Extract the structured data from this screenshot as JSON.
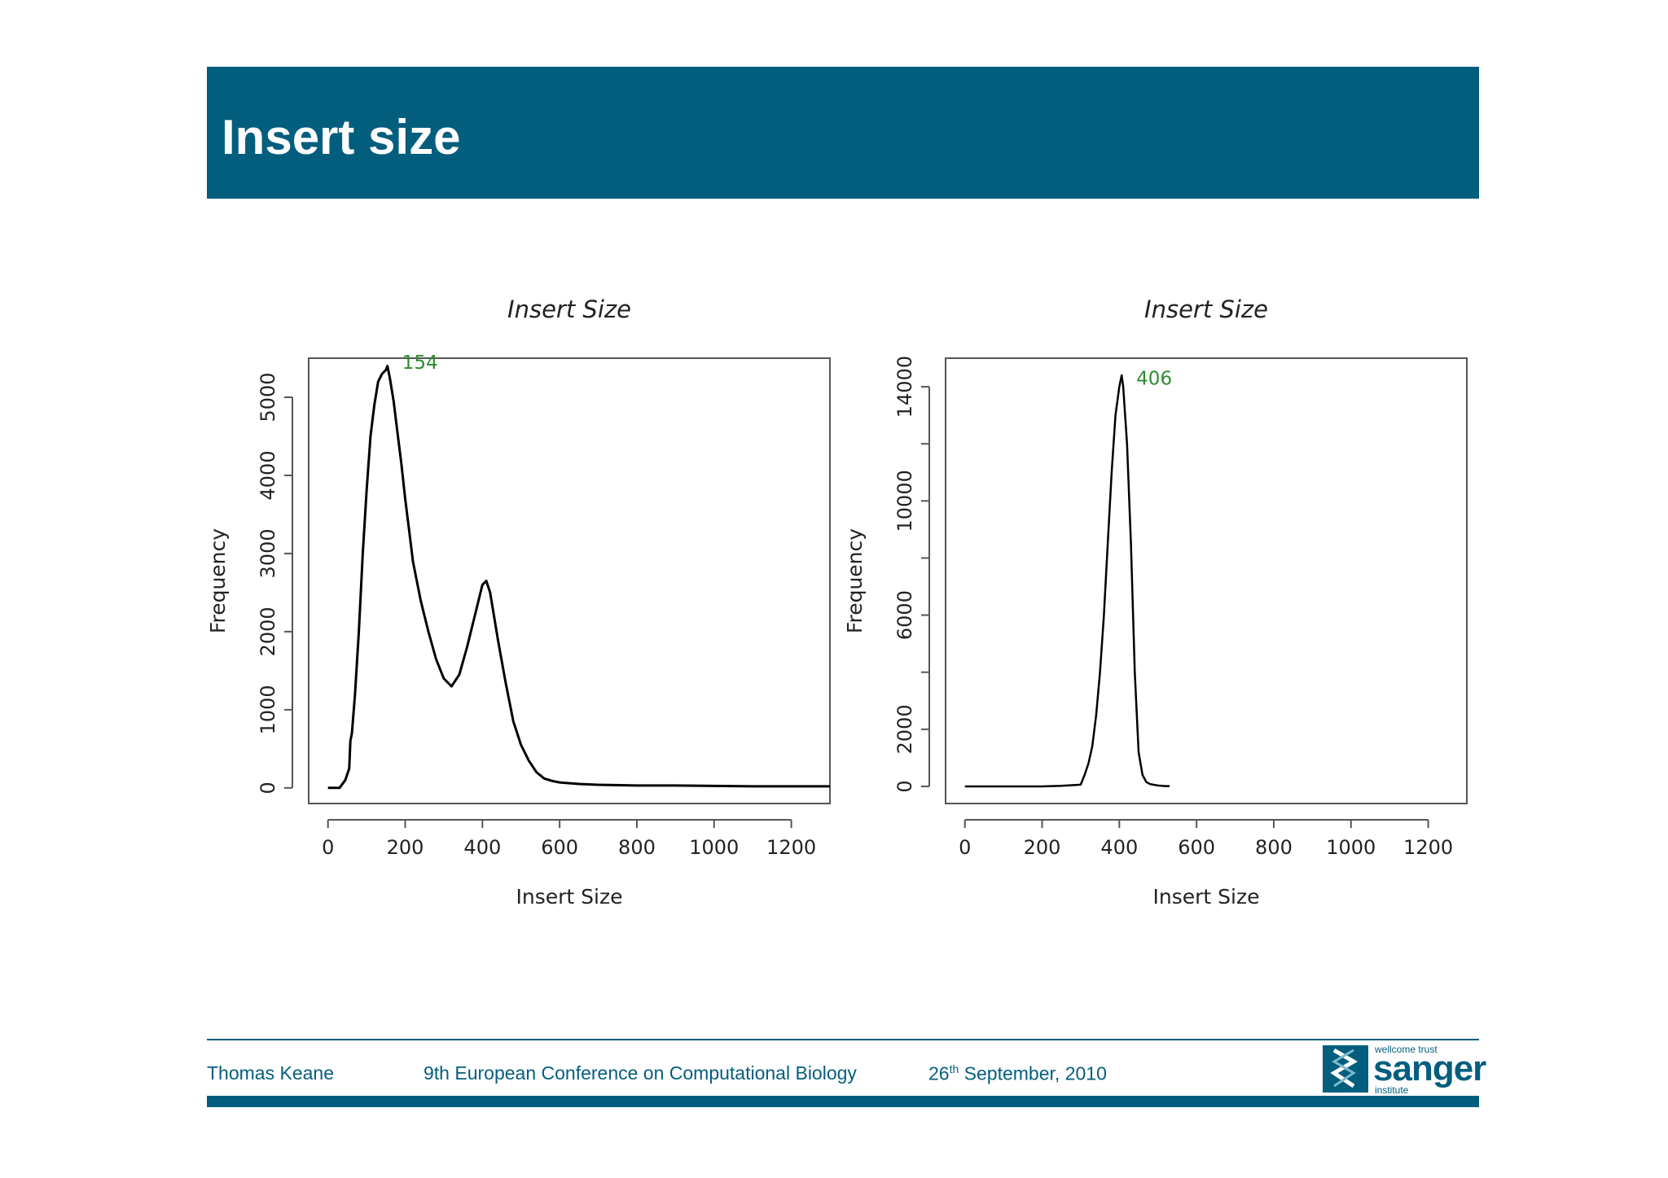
{
  "slide": {
    "title": "Insert size"
  },
  "footer": {
    "author": "Thomas Keane",
    "conference": "9th European Conference on Computational Biology",
    "date_day": "26",
    "date_suffix": "th",
    "date_rest": " September, 2010"
  },
  "logo": {
    "top": "wellcome trust",
    "main": "sanger",
    "bottom": "institute"
  },
  "colors": {
    "header": "#035e7e",
    "annotation": "#2e8b2e",
    "line": "#000000"
  },
  "chart_data": [
    {
      "type": "line",
      "title": "Insert Size",
      "xlabel": "Insert Size",
      "ylabel": "Frequency",
      "xlim": [
        -50,
        1300
      ],
      "ylim": [
        -200,
        5500
      ],
      "xticks": [
        "0",
        "200",
        "400",
        "600",
        "800",
        "1000",
        "1200"
      ],
      "yticks": [
        "0",
        "1000",
        "2000",
        "3000",
        "4000",
        "5000"
      ],
      "annotation": {
        "text": "154",
        "x": 154,
        "y": 5450
      },
      "series": [
        {
          "name": "frequency",
          "x": [
            0,
            30,
            45,
            55,
            58,
            62,
            70,
            80,
            90,
            100,
            110,
            120,
            130,
            140,
            150,
            154,
            160,
            170,
            180,
            190,
            200,
            210,
            220,
            240,
            260,
            280,
            300,
            320,
            340,
            360,
            380,
            400,
            410,
            420,
            440,
            460,
            480,
            500,
            520,
            540,
            560,
            580,
            600,
            650,
            700,
            800,
            900,
            1000,
            1100,
            1200,
            1300
          ],
          "y": [
            0,
            0,
            100,
            250,
            600,
            700,
            1200,
            2000,
            3000,
            3800,
            4500,
            4900,
            5200,
            5300,
            5350,
            5400,
            5250,
            4950,
            4550,
            4150,
            3700,
            3300,
            2900,
            2400,
            2000,
            1650,
            1400,
            1300,
            1450,
            1800,
            2200,
            2600,
            2650,
            2500,
            1900,
            1350,
            850,
            550,
            350,
            200,
            120,
            90,
            70,
            50,
            40,
            30,
            30,
            25,
            20,
            20,
            20
          ]
        }
      ]
    },
    {
      "type": "line",
      "title": "Insert Size",
      "xlabel": "Insert Size",
      "ylabel": "Frequency",
      "xlim": [
        -50,
        1300
      ],
      "ylim": [
        -600,
        15000
      ],
      "xticks": [
        "0",
        "200",
        "400",
        "600",
        "800",
        "1000",
        "1200"
      ],
      "yticks": [
        "0",
        "2000",
        "6000",
        "10000",
        "14000"
      ],
      "annotation": {
        "text": "406",
        "x": 406,
        "y": 14300
      },
      "series": [
        {
          "name": "frequency",
          "x": [
            0,
            100,
            200,
            250,
            300,
            310,
            320,
            330,
            340,
            350,
            360,
            370,
            380,
            390,
            400,
            406,
            410,
            420,
            430,
            440,
            450,
            460,
            470,
            480,
            500,
            520,
            530
          ],
          "y": [
            0,
            0,
            0,
            20,
            60,
            400,
            800,
            1400,
            2500,
            4000,
            6000,
            8500,
            11000,
            13000,
            14000,
            14400,
            14000,
            12000,
            8500,
            4000,
            1200,
            400,
            150,
            80,
            30,
            10,
            10
          ]
        }
      ]
    }
  ]
}
